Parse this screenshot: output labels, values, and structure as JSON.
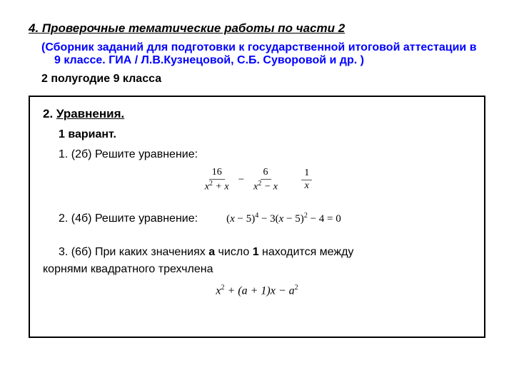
{
  "heading": "4. Проверочные тематические работы по части 2",
  "subheading_open": "(",
  "subheading_text": "Сборник заданий для подготовки к государственной итоговой аттестации в 9 классе.  ГИА / Л.В.Кузнецовой, С.Б. Суворовой и др. )",
  "semester": "2 полугодие 9 класса",
  "box": {
    "title_num": "2. ",
    "title_text": "Уравнения.",
    "variant": "1 вариант.",
    "task1_label": "1. (2б) Решите уравнение:",
    "eq1": {
      "f1_num": "16",
      "f1_den_a": "x",
      "f1_den_b": " + x",
      "minus": "−",
      "f2_num": "6",
      "f2_den_a": "x",
      "f2_den_b": " − x",
      "f3_num": "1",
      "f3_den": "x"
    },
    "task2_label": "2. (4б) Решите уравнение:",
    "eq2_text": "(x − 5)⁴ − 3(x − 5)² − 4 = 0",
    "task3_line1_indent": "3. (6б)  При каких значениях ",
    "task3_a": "а",
    "task3_mid": " число ",
    "task3_one": "1",
    "task3_after": " находится между",
    "task3_line2": "корнями     квадратного трехчлена",
    "eq3_text": "x² + (a + 1)x − a²"
  },
  "colors": {
    "text": "#000000",
    "blue": "#0000ff",
    "border": "#000000",
    "bg": "#ffffff"
  },
  "fonts": {
    "body": "Arial, sans-serif",
    "math": "Times New Roman, serif",
    "base_size": 16
  }
}
